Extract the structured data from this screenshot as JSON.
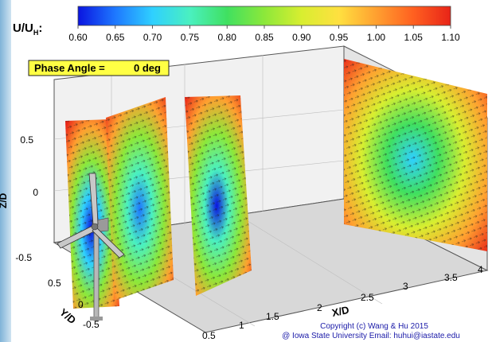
{
  "chart_data": {
    "type": "heatmap",
    "colorbar": {
      "label_main": "U/U",
      "label_sub": "H",
      "label_suffix": ":",
      "ticks": [
        "0.60",
        "0.65",
        "0.70",
        "0.75",
        "0.80",
        "0.85",
        "0.90",
        "0.95",
        "1.00",
        "1.05",
        "1.10"
      ],
      "range": [
        0.6,
        1.1
      ],
      "colors": [
        "#0a14e0",
        "#1e78ff",
        "#2fd0ff",
        "#4af0c0",
        "#40e060",
        "#8ce83a",
        "#d8ee30",
        "#ffe040",
        "#ffa030",
        "#ff6020",
        "#e82418"
      ]
    },
    "phase_annotation": {
      "label": "Phase Angle =",
      "value": "0 deg",
      "background": "#ffff44"
    },
    "axes": {
      "z": {
        "label": "Z/D",
        "ticks": [
          "0.5",
          "0",
          "-0.5"
        ],
        "range": [
          -0.6,
          0.6
        ]
      },
      "y": {
        "label": "Y/D",
        "ticks": [
          "0.5",
          "0",
          "-0.5"
        ],
        "range": [
          -0.6,
          0.6
        ]
      },
      "x": {
        "label": "X/D",
        "ticks": [
          "0.5",
          "1",
          "1.5",
          "2",
          "2.5",
          "3",
          "3.5",
          "4"
        ],
        "range": [
          0.3,
          4.0
        ]
      }
    },
    "planes": [
      {
        "x": 0.5,
        "min_value": 0.6
      },
      {
        "x": 1.0,
        "min_value": 0.65
      },
      {
        "x": 2.0,
        "min_value": 0.62
      },
      {
        "x": 3.5,
        "min_value": 0.72
      }
    ],
    "grid": true,
    "copyright": {
      "line1": "Copyright (c) Wang & Hu 2015",
      "line2": "@ Iowa State University   Email: huhui@iastate.edu"
    }
  }
}
